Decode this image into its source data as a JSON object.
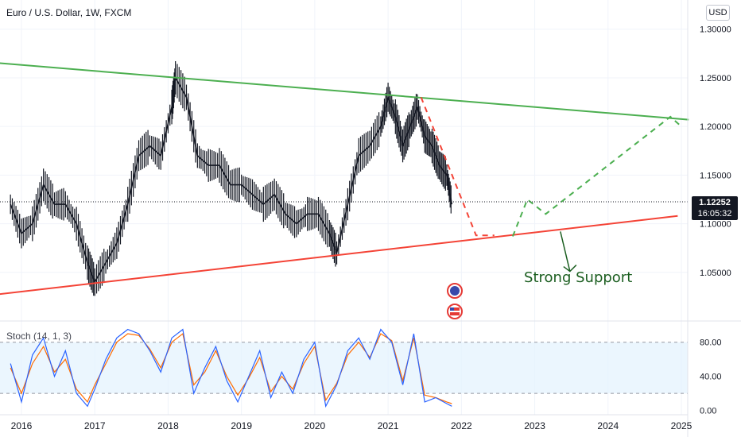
{
  "chart_data": {
    "type": "line",
    "title": "Euro / U.S. Dollar, 1W, FXCM",
    "currency": "USD",
    "last_price": "1.12252",
    "countdown": "16:05:32",
    "ylim": [
      1.0,
      1.33
    ],
    "y_ticks": [
      "1.30000",
      "1.25000",
      "1.20000",
      "1.15000",
      "1.10000",
      "1.05000"
    ],
    "x_ticks": [
      "2016",
      "2017",
      "2018",
      "2019",
      "2020",
      "2021",
      "2022",
      "2023",
      "2024",
      "2025"
    ],
    "price_series": {
      "x": [
        2015.85,
        2016.0,
        2016.15,
        2016.3,
        2016.45,
        2016.6,
        2016.75,
        2016.9,
        2017.0,
        2017.15,
        2017.3,
        2017.45,
        2017.6,
        2017.75,
        2017.9,
        2018.05,
        2018.1,
        2018.25,
        2018.4,
        2018.55,
        2018.7,
        2018.85,
        2019.0,
        2019.15,
        2019.3,
        2019.45,
        2019.6,
        2019.75,
        2019.9,
        2020.05,
        2020.2,
        2020.3,
        2020.45,
        2020.6,
        2020.75,
        2020.9,
        2021.0,
        2021.1,
        2021.2,
        2021.3,
        2021.4,
        2021.5,
        2021.6,
        2021.7,
        2021.8,
        2021.87
      ],
      "y": [
        1.12,
        1.09,
        1.1,
        1.14,
        1.12,
        1.12,
        1.1,
        1.06,
        1.04,
        1.06,
        1.08,
        1.12,
        1.17,
        1.18,
        1.17,
        1.22,
        1.25,
        1.23,
        1.17,
        1.16,
        1.16,
        1.14,
        1.14,
        1.13,
        1.12,
        1.13,
        1.11,
        1.1,
        1.11,
        1.11,
        1.09,
        1.07,
        1.12,
        1.17,
        1.18,
        1.2,
        1.23,
        1.21,
        1.18,
        1.2,
        1.22,
        1.19,
        1.18,
        1.16,
        1.15,
        1.12
      ]
    },
    "trendlines": [
      {
        "color": "#4caf50",
        "x": [
          2014.9,
          2025.1
        ],
        "y": [
          1.27,
          1.207
        ]
      },
      {
        "color": "#f44336",
        "x": [
          2015.4,
          2024.95
        ],
        "y": [
          1.025,
          1.108
        ]
      }
    ],
    "projections": [
      {
        "color": "#f44336",
        "x": [
          2021.45,
          2022.2,
          2022.45
        ],
        "y": [
          1.23,
          1.088,
          1.088
        ]
      },
      {
        "color": "#4caf50",
        "x": [
          2022.7,
          2022.9,
          2023.15,
          2024.85,
          2025.0
        ],
        "y": [
          1.087,
          1.125,
          1.11,
          1.21,
          1.2
        ]
      }
    ],
    "annotation": {
      "text": "Strong Support",
      "x": 2023.45,
      "y": 1.045,
      "color": "#1b5e20"
    },
    "stochastic": {
      "label": "Stoch (14, 1, 3)",
      "ylim": [
        -5,
        103
      ],
      "y_ticks": [
        "80.00",
        "40.00",
        "0.00"
      ],
      "band": [
        20,
        80
      ],
      "k_color": "#2962ff",
      "d_color": "#ff6d00",
      "x": [
        2015.85,
        2016.0,
        2016.15,
        2016.3,
        2016.45,
        2016.6,
        2016.75,
        2016.9,
        2017.0,
        2017.15,
        2017.3,
        2017.45,
        2017.6,
        2017.75,
        2017.9,
        2018.05,
        2018.2,
        2018.35,
        2018.5,
        2018.65,
        2018.8,
        2018.95,
        2019.1,
        2019.25,
        2019.4,
        2019.55,
        2019.7,
        2019.85,
        2020.0,
        2020.15,
        2020.3,
        2020.45,
        2020.6,
        2020.75,
        2020.9,
        2021.05,
        2021.2,
        2021.35,
        2021.5,
        2021.65,
        2021.8,
        2021.87
      ],
      "k": [
        55,
        10,
        65,
        85,
        40,
        70,
        20,
        5,
        25,
        60,
        85,
        95,
        90,
        70,
        45,
        85,
        95,
        20,
        50,
        75,
        35,
        10,
        40,
        70,
        15,
        45,
        20,
        60,
        80,
        5,
        30,
        70,
        85,
        60,
        95,
        80,
        30,
        90,
        10,
        15,
        8,
        5
      ],
      "d": [
        50,
        20,
        55,
        75,
        45,
        60,
        25,
        10,
        30,
        55,
        80,
        90,
        88,
        72,
        50,
        80,
        90,
        30,
        45,
        70,
        40,
        18,
        38,
        62,
        22,
        40,
        25,
        55,
        75,
        12,
        32,
        65,
        80,
        62,
        90,
        82,
        35,
        85,
        18,
        15,
        10,
        8
      ]
    }
  }
}
